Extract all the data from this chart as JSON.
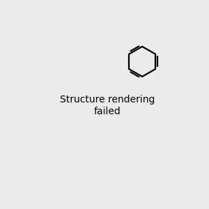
{
  "background_color": "#ebebeb",
  "bond_color": "#000000",
  "N_color": "#0000cc",
  "O_color": "#ff0000",
  "S_color": "#aaaa00",
  "H_color": "#669999",
  "lw": 1.5,
  "dpi": 100
}
